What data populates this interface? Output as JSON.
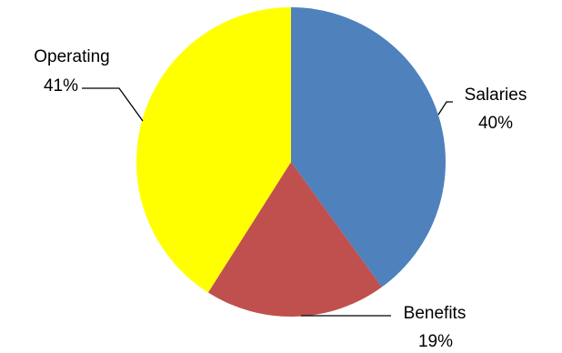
{
  "chart_data": {
    "type": "pie",
    "title": "",
    "start_angle_deg": 0,
    "direction": "clockwise",
    "slices": [
      {
        "name": "Salaries",
        "value": 40,
        "label": "40%",
        "color": "#4f81bd"
      },
      {
        "name": "Benefits",
        "value": 19,
        "label": "19%",
        "color": "#c0504d"
      },
      {
        "name": "Operating",
        "value": 41,
        "label": "41%",
        "color": "#ffff00"
      }
    ],
    "data_labels": "category name and percentage, outside with leader lines",
    "legend": "none"
  }
}
